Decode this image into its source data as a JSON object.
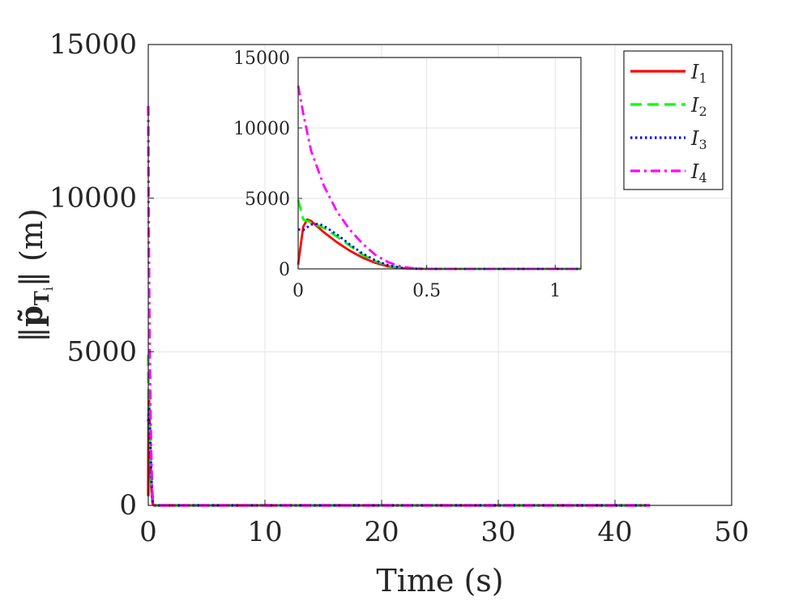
{
  "chart_data": [
    {
      "id": "main",
      "type": "line",
      "title": "",
      "xlabel": "Time (s)",
      "ylabel": "||p̃_Ti|| (m)",
      "xlim": [
        0,
        50
      ],
      "ylim": [
        0,
        15000
      ],
      "xticks": [
        0,
        10,
        20,
        30,
        40,
        50
      ],
      "yticks": [
        0,
        5000,
        10000,
        15000
      ],
      "xtick_labels": [
        "0",
        "10",
        "20",
        "30",
        "40",
        "50"
      ],
      "ytick_labels": [
        "0",
        "5000",
        "10000",
        "15000"
      ],
      "grid": true,
      "series": [
        {
          "name": "I1",
          "color": "#ff0000",
          "dash": "solid",
          "x": [
            0,
            0.02,
            0.05,
            0.1,
            0.15,
            0.2,
            0.25,
            0.3,
            0.35,
            0.4,
            0.5,
            43
          ],
          "y": [
            300,
            2500,
            3600,
            2700,
            1900,
            1250,
            750,
            400,
            150,
            40,
            0,
            0
          ]
        },
        {
          "name": "I2",
          "color": "#00ff00",
          "dash": "dash",
          "x": [
            0,
            0.02,
            0.05,
            0.1,
            0.15,
            0.2,
            0.25,
            0.3,
            0.35,
            0.4,
            0.5,
            43
          ],
          "y": [
            4900,
            3500,
            3300,
            2900,
            2300,
            1600,
            950,
            500,
            200,
            50,
            0,
            0
          ]
        },
        {
          "name": "I3",
          "color": "#0000ff",
          "dash": "dot",
          "x": [
            0,
            0.02,
            0.05,
            0.1,
            0.15,
            0.2,
            0.25,
            0.3,
            0.35,
            0.4,
            0.5,
            43
          ],
          "y": [
            2800,
            2700,
            3200,
            3000,
            2400,
            1700,
            1050,
            550,
            220,
            60,
            0,
            0
          ]
        },
        {
          "name": "I4",
          "color": "#ff00ff",
          "dash": "dashdot",
          "x": [
            0,
            0.02,
            0.05,
            0.1,
            0.15,
            0.2,
            0.25,
            0.3,
            0.35,
            0.4,
            0.5,
            43
          ],
          "y": [
            13000,
            11000,
            8200,
            5800,
            4000,
            2700,
            1700,
            950,
            400,
            100,
            0,
            0
          ]
        }
      ]
    },
    {
      "id": "inset",
      "type": "line",
      "title": "",
      "xlabel": "",
      "ylabel": "",
      "xlim": [
        0,
        1.1
      ],
      "ylim": [
        0,
        15000
      ],
      "xticks": [
        0,
        0.5,
        1
      ],
      "yticks": [
        0,
        5000,
        10000,
        15000
      ],
      "xtick_labels": [
        "0",
        "0.5",
        "1"
      ],
      "ytick_labels": [
        "0",
        "5000",
        "10000",
        "15000"
      ],
      "grid": true,
      "series": [
        {
          "name": "I1",
          "color": "#ff0000",
          "dash": "solid",
          "x": [
            0,
            0.01,
            0.02,
            0.035,
            0.05,
            0.1,
            0.15,
            0.2,
            0.25,
            0.3,
            0.35,
            0.4,
            0.45,
            0.5,
            1.1
          ],
          "y": [
            300,
            1700,
            3000,
            3500,
            3400,
            2600,
            1900,
            1300,
            800,
            430,
            180,
            50,
            10,
            0,
            0
          ]
        },
        {
          "name": "I2",
          "color": "#00ff00",
          "dash": "dash",
          "x": [
            0,
            0.01,
            0.02,
            0.05,
            0.1,
            0.15,
            0.2,
            0.25,
            0.3,
            0.35,
            0.4,
            0.45,
            0.5,
            1.1
          ],
          "y": [
            4900,
            4200,
            3500,
            3300,
            2900,
            2300,
            1650,
            1000,
            550,
            230,
            70,
            15,
            0,
            0
          ]
        },
        {
          "name": "I3",
          "color": "#0000ff",
          "dash": "dot",
          "x": [
            0,
            0.02,
            0.05,
            0.08,
            0.1,
            0.15,
            0.2,
            0.25,
            0.3,
            0.35,
            0.4,
            0.45,
            0.5,
            1.1
          ],
          "y": [
            2800,
            2750,
            3150,
            3200,
            3050,
            2450,
            1750,
            1100,
            600,
            260,
            80,
            20,
            0,
            0
          ]
        },
        {
          "name": "I4",
          "color": "#ff00ff",
          "dash": "dashdot",
          "x": [
            0,
            0.02,
            0.05,
            0.1,
            0.15,
            0.2,
            0.25,
            0.3,
            0.35,
            0.4,
            0.45,
            0.5,
            1.1
          ],
          "y": [
            13000,
            11000,
            8400,
            5900,
            4100,
            2800,
            1800,
            1000,
            480,
            160,
            40,
            0,
            0
          ]
        }
      ]
    }
  ],
  "legend": {
    "placement": "top-right",
    "entries": [
      {
        "symbol": "I",
        "sub": "1",
        "color": "#ff0000",
        "dash": "solid"
      },
      {
        "symbol": "I",
        "sub": "2",
        "color": "#00ff00",
        "dash": "dash"
      },
      {
        "symbol": "I",
        "sub": "3",
        "color": "#0000ff",
        "dash": "dot"
      },
      {
        "symbol": "I",
        "sub": "4",
        "color": "#ff00ff",
        "dash": "dashdot"
      }
    ]
  }
}
